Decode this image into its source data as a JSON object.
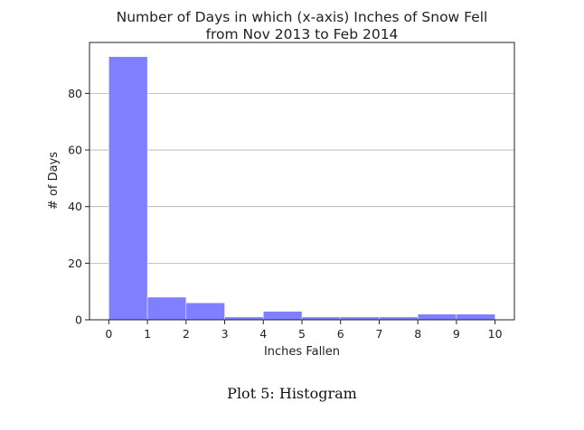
{
  "caption": "Plot 5: Histogram",
  "chart_data": {
    "type": "bar",
    "title": "Number of Days in which (x-axis) Inches of Snow Fell",
    "subtitle": "from Nov 2013 to Feb 2014",
    "xlabel": "Inches Fallen",
    "ylabel": "# of Days",
    "xlim": [
      -0.5,
      10.5
    ],
    "ylim": [
      0,
      98
    ],
    "x_ticks": [
      0,
      1,
      2,
      3,
      4,
      5,
      6,
      7,
      8,
      9,
      10
    ],
    "y_ticks": [
      0,
      20,
      40,
      60,
      80
    ],
    "grid": {
      "y": true,
      "x": false
    },
    "bar_color": "#7f7fff",
    "bins": [
      {
        "from": 0,
        "to": 1,
        "value": 93
      },
      {
        "from": 1,
        "to": 2,
        "value": 8
      },
      {
        "from": 2,
        "to": 3,
        "value": 6
      },
      {
        "from": 3,
        "to": 4,
        "value": 1
      },
      {
        "from": 4,
        "to": 5,
        "value": 3
      },
      {
        "from": 5,
        "to": 6,
        "value": 1
      },
      {
        "from": 6,
        "to": 7,
        "value": 1
      },
      {
        "from": 7,
        "to": 8,
        "value": 1
      },
      {
        "from": 8,
        "to": 9,
        "value": 2
      },
      {
        "from": 9,
        "to": 10,
        "value": 2
      }
    ]
  }
}
